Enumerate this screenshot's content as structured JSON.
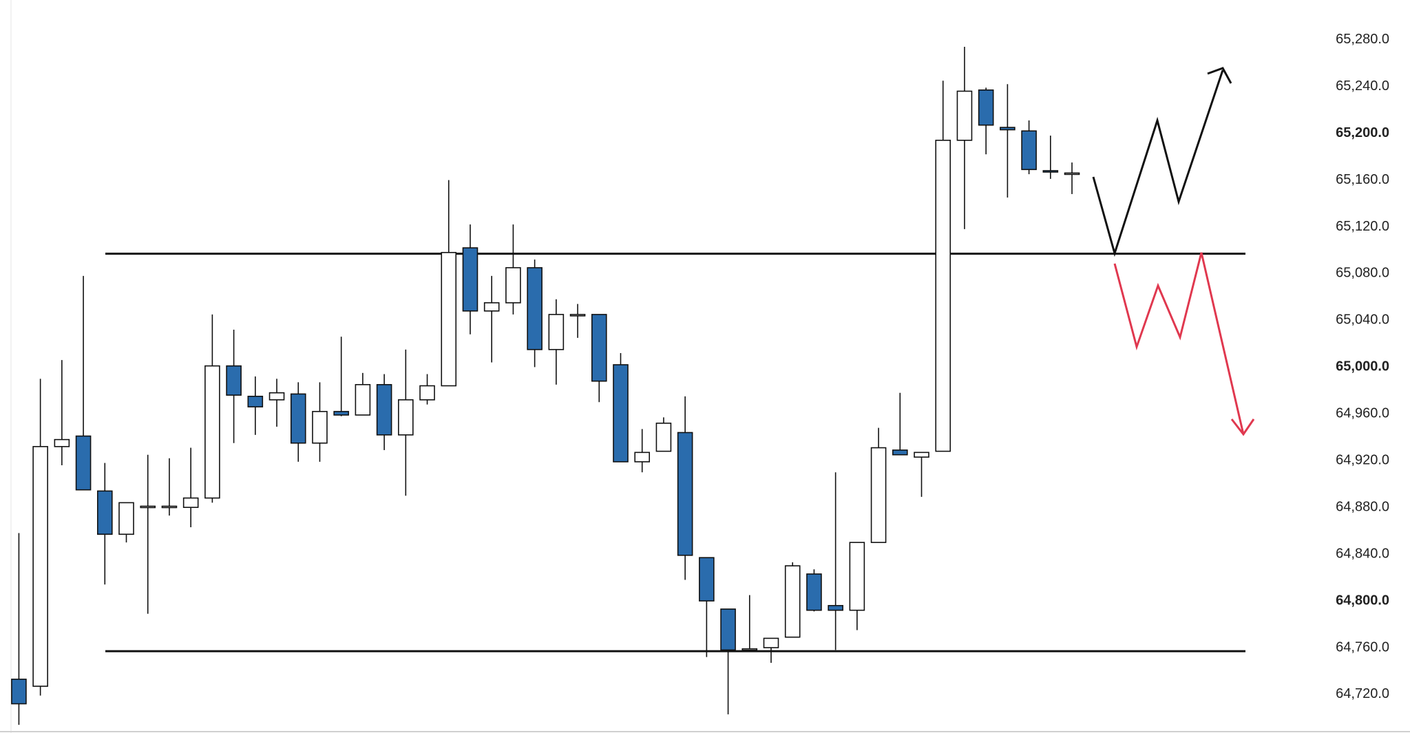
{
  "chart_data": {
    "type": "candlestick",
    "open": [
      64733,
      64727,
      64932,
      64941,
      64894,
      64857,
      64881,
      64880,
      64880,
      64888,
      65001,
      64975,
      64972,
      64977,
      64935,
      64962,
      64959,
      64985,
      64942,
      64972,
      64984,
      65102,
      65048,
      65055,
      65085,
      65015,
      65045,
      65045,
      65002,
      64919,
      64928,
      64944,
      64837,
      64793,
      64758,
      64760,
      64769,
      64823,
      64796,
      64792,
      64850,
      64929,
      64923,
      64928,
      65194,
      65237,
      65205,
      65202,
      65168,
      65166
    ],
    "high": [
      64858,
      64990,
      65006,
      65078,
      64918,
      64884,
      64925,
      64922,
      64931,
      65045,
      65032,
      64992,
      64990,
      64987,
      64987,
      65026,
      64995,
      64994,
      65015,
      64994,
      65160,
      65122,
      65078,
      65122,
      65092,
      65058,
      65054,
      65045,
      65012,
      64947,
      64957,
      64975,
      64837,
      64793,
      64805,
      64768,
      64833,
      64827,
      64910,
      64850,
      64948,
      64978,
      64927,
      65245,
      65274,
      65239,
      65242,
      65211,
      65198,
      65175
    ],
    "low": [
      64694,
      64719,
      64916,
      64895,
      64814,
      64850,
      64789,
      64873,
      64863,
      64884,
      64935,
      64942,
      64949,
      64919,
      64919,
      64958,
      64959,
      64929,
      64890,
      64968,
      64984,
      65028,
      65004,
      65045,
      65000,
      64985,
      65025,
      64970,
      64919,
      64910,
      64928,
      64818,
      64752,
      64703,
      64758,
      64747,
      64769,
      64791,
      64758,
      64775,
      64850,
      64925,
      64889,
      64928,
      65118,
      65182,
      65145,
      65165,
      65161,
      65148
    ],
    "close": [
      64712,
      64932,
      64938,
      64895,
      64857,
      64884,
      64881,
      64881,
      64888,
      65001,
      64976,
      64966,
      64978,
      64935,
      64962,
      64959,
      64985,
      64942,
      64972,
      64984,
      65098,
      65048,
      65055,
      65085,
      65015,
      65045,
      65045,
      64988,
      64919,
      64927,
      64952,
      64839,
      64800,
      64758,
      64759,
      64768,
      64830,
      64792,
      64792,
      64850,
      64931,
      64925,
      64927,
      65194,
      65236,
      65207,
      65203,
      65169,
      65167,
      65166
    ],
    "up_color": "#ffffff",
    "down_color": "#2a6cad",
    "edge_color": "#111111",
    "hlines": [
      65097,
      64757
    ],
    "ylim": [
      64687,
      65314
    ],
    "yticks": [
      {
        "value": 64720,
        "label": "64,720.0"
      },
      {
        "value": 64760,
        "label": "64,760.0"
      },
      {
        "value": 64800,
        "label": "64,800.0",
        "bold": true
      },
      {
        "value": 64840,
        "label": "64,840.0"
      },
      {
        "value": 64880,
        "label": "64,880.0"
      },
      {
        "value": 64920,
        "label": "64,920.0"
      },
      {
        "value": 64960,
        "label": "64,960.0"
      },
      {
        "value": 65000,
        "label": "65,000.0",
        "bold": true
      },
      {
        "value": 65040,
        "label": "65,040.0"
      },
      {
        "value": 65080,
        "label": "65,080.0"
      },
      {
        "value": 65120,
        "label": "65,120.0"
      },
      {
        "value": 65160,
        "label": "65,160.0"
      },
      {
        "value": 65200,
        "label": "65,200.0",
        "bold": true
      },
      {
        "value": 65240,
        "label": "65,240.0"
      },
      {
        "value": 65280,
        "label": "65,280.0"
      }
    ],
    "grid": false
  }
}
